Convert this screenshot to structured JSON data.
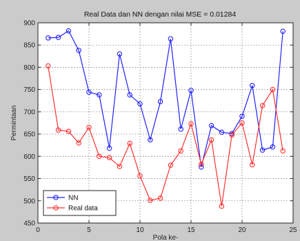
{
  "chart_data": {
    "type": "line",
    "title": "Real Data dan NN dengan nilai MSE = 0.01284",
    "xlabel": "Pola ke-",
    "ylabel": "Permintaan",
    "xlim": [
      0,
      25
    ],
    "ylim": [
      450,
      900
    ],
    "xticks": [
      0,
      5,
      10,
      15,
      20,
      25
    ],
    "yticks": [
      450,
      500,
      550,
      600,
      650,
      700,
      750,
      800,
      850,
      900
    ],
    "grid": true,
    "legend_position": "bottom-left",
    "x": [
      1,
      2,
      3,
      4,
      5,
      6,
      7,
      8,
      9,
      10,
      11,
      12,
      13,
      14,
      15,
      16,
      17,
      18,
      19,
      20,
      21,
      22,
      23,
      24
    ],
    "series": [
      {
        "name": "NN",
        "color": "#2020ff",
        "values": [
          866,
          867,
          882,
          838,
          744,
          738,
          618,
          830,
          738,
          718,
          637,
          723,
          864,
          661,
          748,
          576,
          669,
          654,
          651,
          690,
          759,
          614,
          621,
          881
        ]
      },
      {
        "name": "Real data",
        "color": "#ff3030",
        "values": [
          803,
          659,
          656,
          630,
          665,
          600,
          597,
          577,
          629,
          556,
          501,
          506,
          580,
          612,
          673,
          582,
          637,
          488,
          648,
          675,
          581,
          714,
          750,
          612
        ]
      }
    ]
  }
}
